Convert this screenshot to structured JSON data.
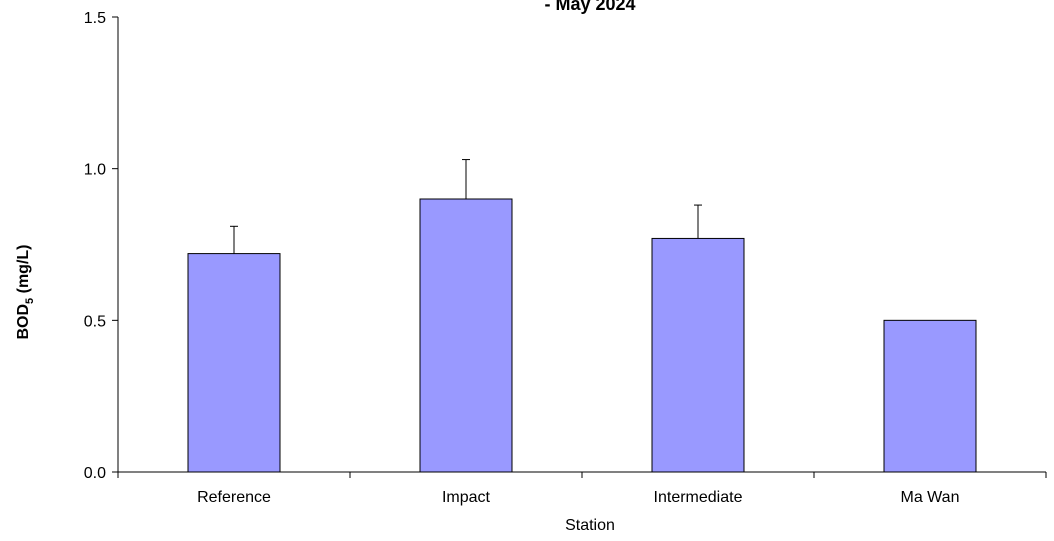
{
  "chart_data": {
    "type": "bar",
    "title": "- May 2024",
    "xlabel": "Station",
    "ylabel": {
      "main": "BOD",
      "subscript": "5",
      "suffix": " (mg/L)"
    },
    "categories": [
      "Reference",
      "Impact",
      "Intermediate",
      "Ma Wan"
    ],
    "values": [
      0.72,
      0.9,
      0.77,
      0.5
    ],
    "error_upper": [
      0.81,
      1.03,
      0.88,
      0.5
    ],
    "ylim": [
      0.0,
      1.5
    ],
    "yticks": [
      0.0,
      0.5,
      1.0,
      1.5
    ],
    "ytick_labels": [
      "0.0",
      "0.5",
      "1.0",
      "1.5"
    ],
    "grid": false,
    "colors": {
      "bar_fill": "#9999ff",
      "bar_stroke": "#000000",
      "axis": "#000000"
    }
  }
}
